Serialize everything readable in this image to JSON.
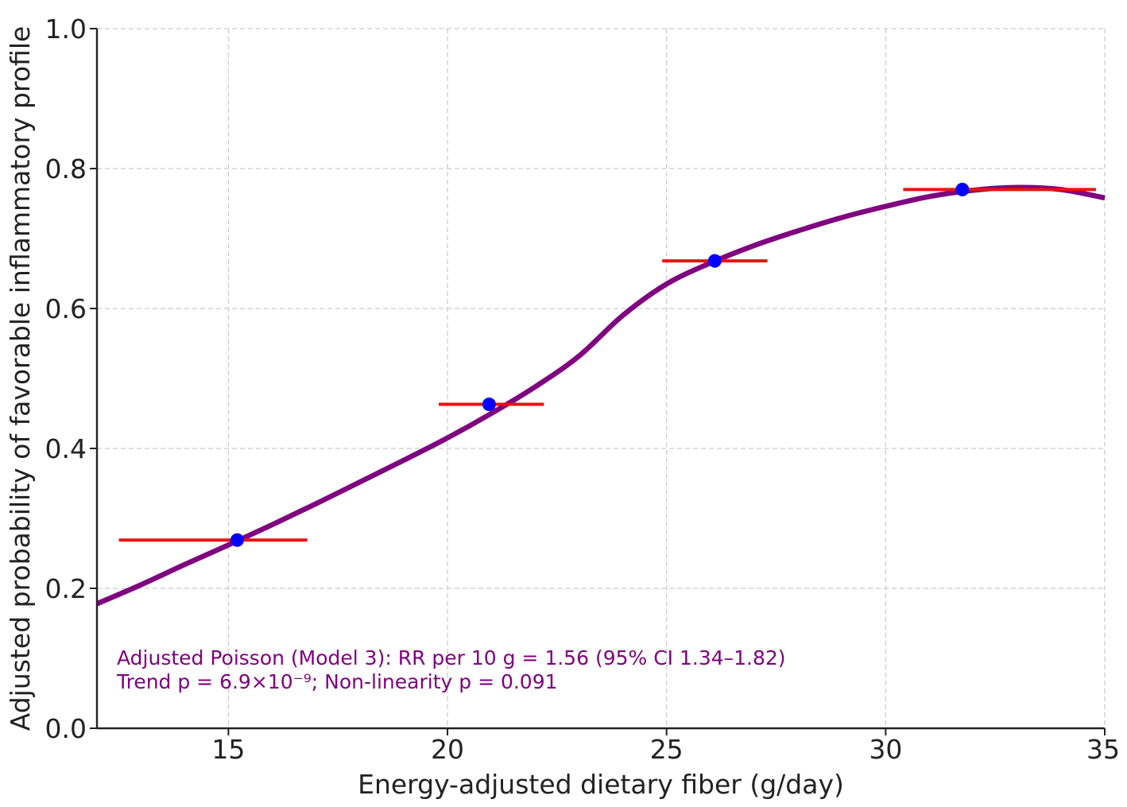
{
  "chart_data": {
    "type": "line",
    "title": "",
    "xlabel": "Energy-adjusted dietary fiber (g/day)",
    "ylabel": "Adjusted probability of favorable inflammatory profile",
    "xlim": [
      12,
      35
    ],
    "ylim": [
      0.0,
      1.0
    ],
    "xticks": [
      15,
      20,
      25,
      30,
      35
    ],
    "xtick_labels": [
      "15",
      "20",
      "25",
      "30",
      "35"
    ],
    "yticks": [
      0.0,
      0.2,
      0.4,
      0.6,
      0.8,
      1.0
    ],
    "ytick_labels": [
      "0.0",
      "0.2",
      "0.4",
      "0.6",
      "0.8",
      "1.0"
    ],
    "grid": true,
    "legend": "none",
    "colors": {
      "curve": "#800080",
      "points": "#0000ff",
      "intervals": "#ee1111",
      "annotation": "#800080"
    },
    "series": [
      {
        "type": "line",
        "x": [
          12,
          13,
          14,
          15,
          16,
          17,
          18,
          19,
          20,
          21,
          22,
          23,
          24,
          25,
          26,
          27,
          28,
          29,
          30,
          31,
          32,
          33,
          34,
          35
        ],
        "y": [
          0.178,
          0.205,
          0.234,
          0.262,
          0.291,
          0.321,
          0.352,
          0.383,
          0.415,
          0.45,
          0.488,
          0.532,
          0.59,
          0.635,
          0.665,
          0.69,
          0.711,
          0.73,
          0.746,
          0.76,
          0.769,
          0.773,
          0.77,
          0.758
        ]
      },
      {
        "type": "scatter",
        "x": [
          15.2,
          20.95,
          26.1,
          31.75
        ],
        "y": [
          0.269,
          0.463,
          0.668,
          0.77
        ],
        "xerr_low": [
          12.5,
          19.8,
          24.9,
          30.4
        ],
        "xerr_high": [
          16.8,
          22.2,
          27.3,
          34.8
        ]
      }
    ],
    "annotations": [
      "Adjusted Poisson (Model 3): RR per 10 g = 1.56 (95% CI 1.34–1.82)",
      "Trend p = 6.9×10⁻⁹; Non-linearity p = 0.091"
    ]
  }
}
